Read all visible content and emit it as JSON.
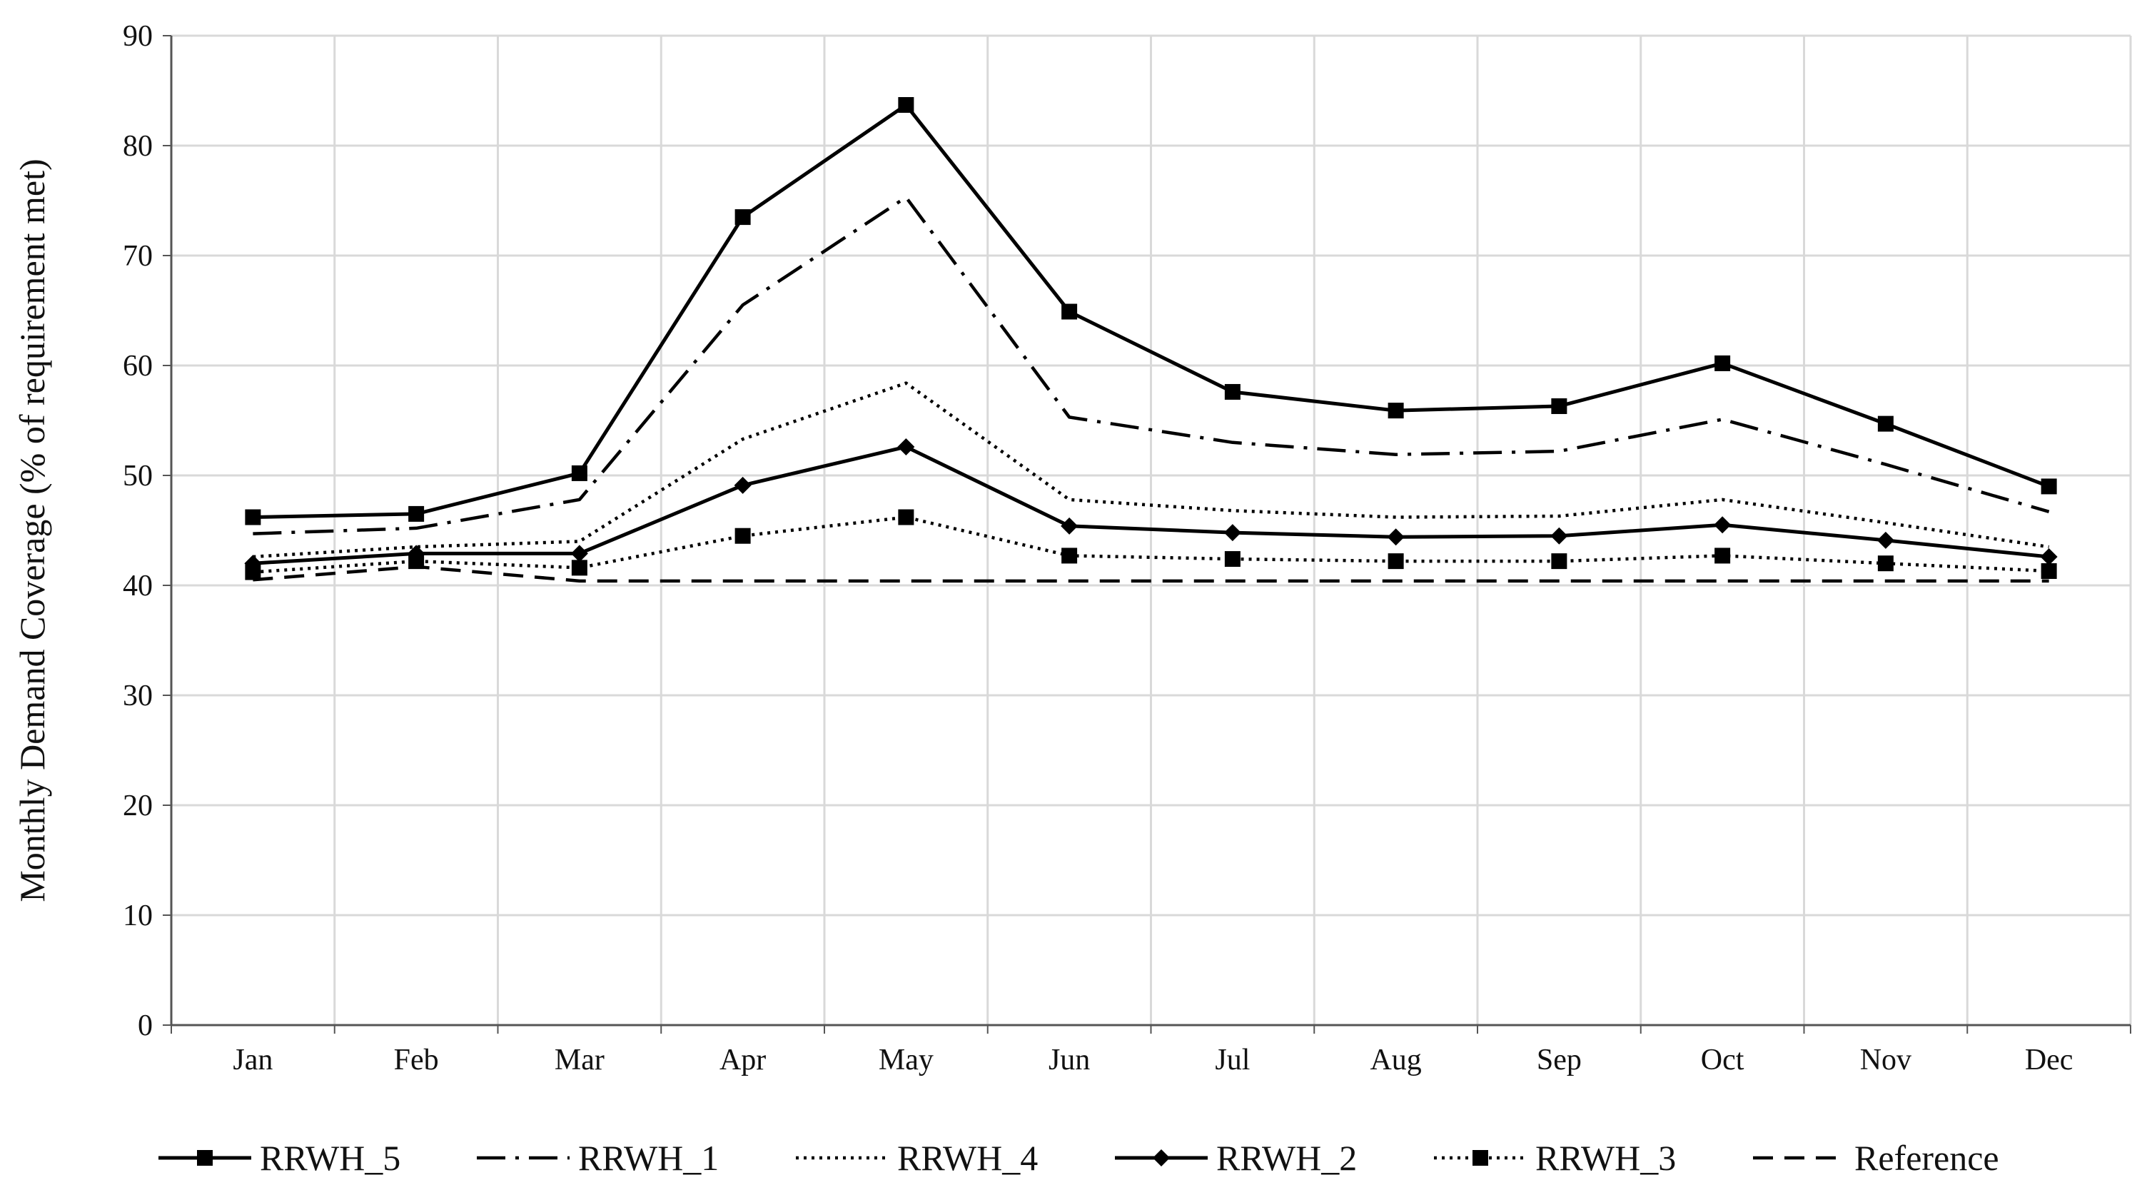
{
  "chart_data": {
    "type": "line",
    "title": "",
    "xlabel": "",
    "ylabel": "Monthly Demand Coverage (% of requirement met)",
    "categories": [
      "Jan",
      "Feb",
      "Mar",
      "Apr",
      "May",
      "Jun",
      "Jul",
      "Aug",
      "Sep",
      "Oct",
      "Nov",
      "Dec"
    ],
    "ylim": [
      0,
      90
    ],
    "yticks": [
      "0",
      "10",
      "20",
      "30",
      "40",
      "50",
      "60",
      "70",
      "80",
      "90"
    ],
    "grid": "on (major horizontal and vertical)",
    "legend_placement": "bottom",
    "series": [
      {
        "name": "RRWH_5",
        "style": "solid",
        "marker": "square",
        "color": "#000000",
        "values": [
          46.2,
          46.5,
          50.2,
          73.5,
          83.7,
          64.9,
          57.6,
          55.9,
          56.3,
          60.2,
          54.7,
          49.0
        ]
      },
      {
        "name": "RRWH_1",
        "style": "dashdot",
        "marker": "none",
        "color": "#000000",
        "values": [
          44.7,
          45.2,
          47.8,
          65.5,
          75.3,
          55.3,
          53.0,
          51.9,
          52.2,
          55.1,
          51.0,
          46.7
        ]
      },
      {
        "name": "RRWH_4",
        "style": "dotted",
        "marker": "none",
        "color": "#000000",
        "values": [
          42.6,
          43.5,
          44.0,
          53.3,
          58.4,
          47.8,
          46.8,
          46.2,
          46.3,
          47.8,
          45.7,
          43.5
        ]
      },
      {
        "name": "RRWH_2",
        "style": "solid",
        "marker": "diamond",
        "color": "#000000",
        "values": [
          42.0,
          42.9,
          42.9,
          49.1,
          52.6,
          45.4,
          44.8,
          44.4,
          44.5,
          45.5,
          44.1,
          42.6
        ]
      },
      {
        "name": "RRWH_3",
        "style": "dotted",
        "marker": "square",
        "color": "#000000",
        "values": [
          41.2,
          42.2,
          41.6,
          44.5,
          46.2,
          42.7,
          42.4,
          42.2,
          42.2,
          42.7,
          42.0,
          41.3
        ]
      },
      {
        "name": "Reference",
        "style": "dashed",
        "marker": "none",
        "color": "#000000",
        "values": [
          40.5,
          41.7,
          40.4,
          40.4,
          40.4,
          40.4,
          40.4,
          40.4,
          40.4,
          40.4,
          40.4,
          40.4
        ]
      }
    ]
  }
}
